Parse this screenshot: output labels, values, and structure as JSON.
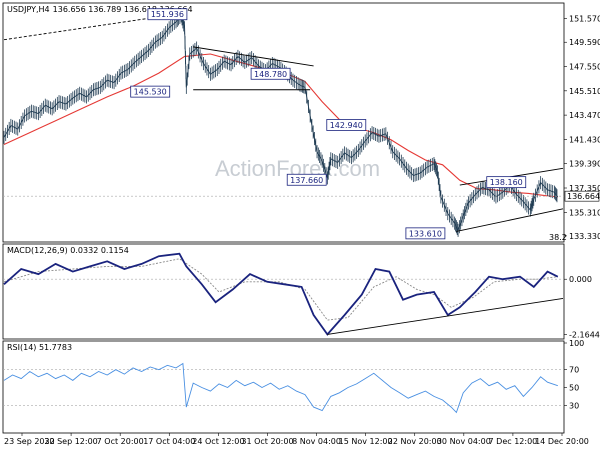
{
  "chart_data": [
    {
      "type": "candlestick",
      "title": "USDJPY,H4",
      "ohlc_header": "136.656 136.789 136.618 136.664",
      "current_price": "136.664",
      "yticks": [
        "151.570",
        "149.590",
        "147.550",
        "145.510",
        "143.470",
        "141.430",
        "139.390",
        "137.350",
        "135.310",
        "133.330"
      ],
      "ylim": [
        132.9,
        152.8
      ],
      "close_path": [
        [
          0.0,
          141.6
        ],
        [
          0.4,
          142.6
        ],
        [
          0.8,
          142.3
        ],
        [
          1.2,
          143.4
        ],
        [
          1.6,
          143.8
        ],
        [
          2.0,
          143.6
        ],
        [
          2.4,
          144.3
        ],
        [
          2.8,
          144.0
        ],
        [
          3.2,
          144.6
        ],
        [
          3.6,
          144.4
        ],
        [
          4.0,
          144.9
        ],
        [
          4.4,
          145.3
        ],
        [
          4.8,
          145.0
        ],
        [
          5.2,
          145.6
        ],
        [
          5.6,
          145.8
        ],
        [
          6.0,
          146.4
        ],
        [
          6.4,
          146.2
        ],
        [
          6.8,
          147.0
        ],
        [
          7.2,
          147.3
        ],
        [
          7.6,
          147.9
        ],
        [
          8.0,
          148.4
        ],
        [
          8.4,
          148.9
        ],
        [
          8.8,
          149.6
        ],
        [
          9.2,
          150.0
        ],
        [
          9.6,
          150.8
        ],
        [
          10.0,
          151.3
        ],
        [
          10.3,
          151.8
        ],
        [
          10.5,
          150.8
        ],
        [
          10.6,
          145.8
        ],
        [
          10.8,
          148.6
        ],
        [
          11.2,
          149.1
        ],
        [
          11.6,
          147.8
        ],
        [
          12.0,
          146.9
        ],
        [
          12.4,
          147.3
        ],
        [
          12.8,
          148.0
        ],
        [
          13.2,
          147.7
        ],
        [
          13.6,
          148.4
        ],
        [
          14.0,
          147.9
        ],
        [
          14.4,
          148.3
        ],
        [
          14.8,
          147.6
        ],
        [
          15.2,
          147.2
        ],
        [
          15.6,
          147.8
        ],
        [
          16.0,
          147.5
        ],
        [
          16.4,
          147.0
        ],
        [
          16.8,
          146.4
        ],
        [
          17.2,
          146.0
        ],
        [
          17.5,
          145.8
        ],
        [
          17.9,
          142.6
        ],
        [
          18.2,
          140.4
        ],
        [
          18.5,
          139.6
        ],
        [
          18.8,
          138.2
        ],
        [
          19.0,
          139.8
        ],
        [
          19.4,
          139.5
        ],
        [
          19.8,
          140.3
        ],
        [
          20.2,
          139.9
        ],
        [
          20.6,
          140.5
        ],
        [
          21.0,
          141.3
        ],
        [
          21.4,
          142.0
        ],
        [
          21.8,
          141.7
        ],
        [
          22.2,
          141.9
        ],
        [
          22.6,
          140.4
        ],
        [
          23.0,
          139.8
        ],
        [
          23.4,
          139.0
        ],
        [
          23.8,
          138.4
        ],
        [
          24.2,
          138.6
        ],
        [
          24.6,
          139.1
        ],
        [
          25.0,
          139.4
        ],
        [
          25.2,
          138.7
        ],
        [
          25.4,
          136.6
        ],
        [
          25.8,
          135.2
        ],
        [
          26.2,
          134.4
        ],
        [
          26.4,
          133.8
        ],
        [
          26.7,
          135.0
        ],
        [
          27.0,
          136.1
        ],
        [
          27.4,
          136.8
        ],
        [
          27.8,
          137.4
        ],
        [
          28.2,
          137.2
        ],
        [
          28.6,
          136.6
        ],
        [
          29.0,
          137.0
        ],
        [
          29.4,
          137.6
        ],
        [
          29.8,
          136.8
        ],
        [
          30.2,
          136.2
        ],
        [
          30.6,
          135.5
        ],
        [
          30.8,
          136.4
        ],
        [
          31.2,
          137.8
        ],
        [
          31.6,
          137.2
        ],
        [
          32.0,
          137.0
        ],
        [
          32.2,
          136.6
        ]
      ],
      "ma_path": [
        [
          0.0,
          141.0
        ],
        [
          1.5,
          142.0
        ],
        [
          3.0,
          143.0
        ],
        [
          4.5,
          144.0
        ],
        [
          6.0,
          145.0
        ],
        [
          7.5,
          145.9
        ],
        [
          9.0,
          147.0
        ],
        [
          10.5,
          148.4
        ],
        [
          12.0,
          148.6
        ],
        [
          13.5,
          148.0
        ],
        [
          15.0,
          147.4
        ],
        [
          16.5,
          146.9
        ],
        [
          17.5,
          146.3
        ],
        [
          18.5,
          144.6
        ],
        [
          19.5,
          143.1
        ],
        [
          20.5,
          142.4
        ],
        [
          21.5,
          142.0
        ],
        [
          22.5,
          141.4
        ],
        [
          23.5,
          140.5
        ],
        [
          24.5,
          139.7
        ],
        [
          25.5,
          139.3
        ],
        [
          26.5,
          138.0
        ],
        [
          27.5,
          137.3
        ],
        [
          28.5,
          137.2
        ],
        [
          29.5,
          137.0
        ],
        [
          30.5,
          136.9
        ],
        [
          31.5,
          136.7
        ],
        [
          32.2,
          136.6
        ]
      ],
      "annotations": [
        {
          "text": "151.936",
          "x": 9.5,
          "y": 151.9
        },
        {
          "text": "145.530",
          "x": 8.5,
          "y": 145.4
        },
        {
          "text": "148.780",
          "x": 15.5,
          "y": 146.9
        },
        {
          "text": "142.940",
          "x": 19.9,
          "y": 142.6
        },
        {
          "text": "137.660",
          "x": 17.6,
          "y": 138.0
        },
        {
          "text": "133.610",
          "x": 24.5,
          "y": 133.5
        },
        {
          "text": "138.160",
          "x": 29.2,
          "y": 137.8
        }
      ],
      "trend_lines": [
        {
          "x1": 0.0,
          "y1": 149.8,
          "x2": 10.3,
          "y2": 152.0,
          "style": "dashed"
        },
        {
          "x1": 11.0,
          "y1": 149.2,
          "x2": 18.0,
          "y2": 147.6
        },
        {
          "x1": 11.0,
          "y1": 145.6,
          "x2": 17.8,
          "y2": 145.6
        },
        {
          "x1": 26.3,
          "y1": 133.7,
          "x2": 32.5,
          "y2": 135.6
        },
        {
          "x1": 26.5,
          "y1": 137.6,
          "x2": 32.5,
          "y2": 139.0
        }
      ],
      "fib_label": "38.2",
      "watermark": "ActionForex.com"
    },
    {
      "type": "line",
      "title": "MACD(12,26,9) 0.0332 0.1154",
      "yticks": [
        "0.000",
        "-2.1644"
      ],
      "ylim": [
        -2.3,
        1.3
      ],
      "macd_path": [
        [
          0.0,
          -0.2
        ],
        [
          1.0,
          0.4
        ],
        [
          2.0,
          0.2
        ],
        [
          3.0,
          0.6
        ],
        [
          4.0,
          0.3
        ],
        [
          5.0,
          0.5
        ],
        [
          6.0,
          0.7
        ],
        [
          7.0,
          0.4
        ],
        [
          8.0,
          0.6
        ],
        [
          9.0,
          0.9
        ],
        [
          10.2,
          1.0
        ],
        [
          10.6,
          0.5
        ],
        [
          11.5,
          -0.2
        ],
        [
          12.3,
          -0.9
        ],
        [
          13.3,
          -0.4
        ],
        [
          14.3,
          0.2
        ],
        [
          15.3,
          -0.1
        ],
        [
          16.3,
          -0.2
        ],
        [
          17.3,
          -0.3
        ],
        [
          18.0,
          -1.4
        ],
        [
          18.8,
          -2.16
        ],
        [
          19.8,
          -1.4
        ],
        [
          20.8,
          -0.6
        ],
        [
          21.6,
          0.4
        ],
        [
          22.4,
          0.3
        ],
        [
          23.2,
          -0.8
        ],
        [
          24.0,
          -0.6
        ],
        [
          25.0,
          -0.5
        ],
        [
          25.8,
          -1.4
        ],
        [
          26.5,
          -1.1
        ],
        [
          27.4,
          -0.5
        ],
        [
          28.2,
          0.1
        ],
        [
          29.0,
          0.0
        ],
        [
          30.0,
          0.1
        ],
        [
          30.8,
          -0.3
        ],
        [
          31.6,
          0.3
        ],
        [
          32.2,
          0.1
        ]
      ],
      "signal_path": [
        [
          0.0,
          -0.1
        ],
        [
          2.0,
          0.3
        ],
        [
          4.0,
          0.4
        ],
        [
          6.0,
          0.5
        ],
        [
          8.0,
          0.5
        ],
        [
          10.2,
          0.8
        ],
        [
          11.5,
          0.2
        ],
        [
          12.5,
          -0.5
        ],
        [
          14.0,
          -0.1
        ],
        [
          16.0,
          -0.1
        ],
        [
          17.5,
          -0.4
        ],
        [
          18.8,
          -1.6
        ],
        [
          20.0,
          -1.5
        ],
        [
          21.5,
          -0.3
        ],
        [
          22.8,
          0.1
        ],
        [
          24.0,
          -0.4
        ],
        [
          25.0,
          -0.6
        ],
        [
          26.0,
          -1.1
        ],
        [
          27.3,
          -0.7
        ],
        [
          28.5,
          -0.1
        ],
        [
          30.0,
          0.0
        ],
        [
          31.0,
          0.0
        ],
        [
          32.2,
          0.1
        ]
      ],
      "trend_line": {
        "x1": 18.8,
        "y1": -2.16,
        "x2": 32.5,
        "y2": -0.75
      }
    },
    {
      "type": "line",
      "title": "RSI(14) 51.7783",
      "yticks": [
        "100",
        "70",
        "50",
        "30"
      ],
      "ylim": [
        0,
        100
      ],
      "rsi_path": [
        [
          0.0,
          58
        ],
        [
          0.5,
          64
        ],
        [
          1.0,
          60
        ],
        [
          1.5,
          68
        ],
        [
          2.0,
          62
        ],
        [
          2.5,
          66
        ],
        [
          3.0,
          60
        ],
        [
          3.5,
          64
        ],
        [
          4.0,
          58
        ],
        [
          4.5,
          66
        ],
        [
          5.0,
          62
        ],
        [
          5.5,
          68
        ],
        [
          6.0,
          64
        ],
        [
          6.5,
          70
        ],
        [
          7.0,
          65
        ],
        [
          7.5,
          72
        ],
        [
          8.0,
          68
        ],
        [
          8.5,
          73
        ],
        [
          9.0,
          70
        ],
        [
          9.5,
          75
        ],
        [
          10.0,
          72
        ],
        [
          10.4,
          77
        ],
        [
          10.6,
          28
        ],
        [
          11.0,
          55
        ],
        [
          11.5,
          50
        ],
        [
          12.0,
          46
        ],
        [
          12.5,
          54
        ],
        [
          13.0,
          50
        ],
        [
          13.5,
          58
        ],
        [
          14.0,
          52
        ],
        [
          14.5,
          56
        ],
        [
          15.0,
          50
        ],
        [
          15.5,
          55
        ],
        [
          16.0,
          48
        ],
        [
          16.5,
          52
        ],
        [
          17.0,
          46
        ],
        [
          17.5,
          42
        ],
        [
          18.0,
          28
        ],
        [
          18.5,
          24
        ],
        [
          19.0,
          40
        ],
        [
          19.5,
          44
        ],
        [
          20.0,
          50
        ],
        [
          20.5,
          54
        ],
        [
          21.0,
          60
        ],
        [
          21.5,
          66
        ],
        [
          22.0,
          58
        ],
        [
          22.5,
          50
        ],
        [
          23.0,
          44
        ],
        [
          23.5,
          38
        ],
        [
          24.0,
          42
        ],
        [
          24.5,
          46
        ],
        [
          25.0,
          40
        ],
        [
          25.5,
          36
        ],
        [
          26.0,
          28
        ],
        [
          26.3,
          22
        ],
        [
          26.7,
          44
        ],
        [
          27.2,
          55
        ],
        [
          27.7,
          60
        ],
        [
          28.2,
          52
        ],
        [
          28.7,
          56
        ],
        [
          29.2,
          48
        ],
        [
          29.7,
          52
        ],
        [
          30.2,
          40
        ],
        [
          30.7,
          50
        ],
        [
          31.2,
          62
        ],
        [
          31.6,
          56
        ],
        [
          32.2,
          52
        ]
      ]
    }
  ],
  "x_labels": [
    "23 Sep 2022",
    "30 Sep 12:00",
    "7 Oct 20:00",
    "17 Oct 04:00",
    "24 Oct 12:00",
    "31 Oct 20:00",
    "8 Nov 04:00",
    "15 Nov 12:00",
    "22 Nov 20:00",
    "30 Nov 04:00",
    "7 Dec 12:00",
    "14 Dec 20:00"
  ],
  "colors": {
    "price": "#1f3b52",
    "ma": "#e53935",
    "macd": "#1a237e",
    "signal": "#8a8a8a",
    "rsi": "#4a90e2",
    "trend": "#000000",
    "label_border": "#1a237e",
    "label_text": "#1a237e"
  }
}
